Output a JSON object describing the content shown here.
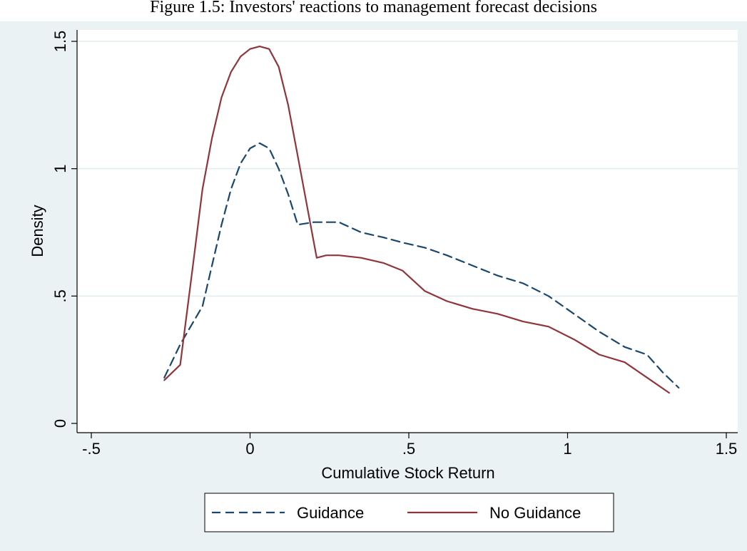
{
  "figure": {
    "caption": "Figure 1.5: Investors' reactions to management forecast decisions"
  },
  "chart_data": {
    "type": "line",
    "title": "",
    "xlabel": "Cumulative Stock Return",
    "ylabel": "Density",
    "xlim": [
      -0.5,
      1.5
    ],
    "ylim": [
      0,
      1.5
    ],
    "xticks": [
      -0.5,
      0,
      0.5,
      1,
      1.5
    ],
    "xtick_labels": [
      "-.5",
      "0",
      ".5",
      "1",
      "1.5"
    ],
    "yticks": [
      0,
      0.5,
      1,
      1.5
    ],
    "ytick_labels": [
      "0",
      ".5",
      "1",
      "1.5"
    ],
    "grid": true,
    "legend_position": "bottom",
    "colors": {
      "background": "#eaf2f3",
      "plot_area": "#ffffff",
      "grid": "#e1ecee",
      "guidance": "#1a476f",
      "no_guidance": "#90353b"
    },
    "series": [
      {
        "name": "Guidance",
        "style": "dashed",
        "x": [
          -0.27,
          -0.22,
          -0.15,
          -0.12,
          -0.09,
          -0.06,
          -0.03,
          0,
          0.03,
          0.06,
          0.09,
          0.12,
          0.15,
          0.2,
          0.28,
          0.35,
          0.42,
          0.48,
          0.55,
          0.62,
          0.7,
          0.78,
          0.86,
          0.94,
          1.02,
          1.1,
          1.18,
          1.25,
          1.3,
          1.35
        ],
        "y": [
          0.18,
          0.31,
          0.46,
          0.62,
          0.78,
          0.92,
          1.02,
          1.08,
          1.1,
          1.08,
          1.0,
          0.9,
          0.78,
          0.79,
          0.79,
          0.75,
          0.73,
          0.71,
          0.69,
          0.66,
          0.62,
          0.58,
          0.55,
          0.5,
          0.43,
          0.36,
          0.3,
          0.27,
          0.2,
          0.14
        ]
      },
      {
        "name": "No Guidance",
        "style": "solid",
        "x": [
          -0.27,
          -0.22,
          -0.18,
          -0.15,
          -0.12,
          -0.09,
          -0.06,
          -0.03,
          0,
          0.03,
          0.06,
          0.09,
          0.12,
          0.15,
          0.18,
          0.21,
          0.24,
          0.28,
          0.35,
          0.42,
          0.48,
          0.55,
          0.62,
          0.7,
          0.78,
          0.86,
          0.94,
          1.02,
          1.1,
          1.18,
          1.25,
          1.32
        ],
        "y": [
          0.17,
          0.23,
          0.62,
          0.92,
          1.12,
          1.28,
          1.38,
          1.44,
          1.47,
          1.48,
          1.47,
          1.4,
          1.25,
          1.05,
          0.85,
          0.65,
          0.66,
          0.66,
          0.65,
          0.63,
          0.6,
          0.52,
          0.48,
          0.45,
          0.43,
          0.4,
          0.38,
          0.33,
          0.27,
          0.24,
          0.18,
          0.12
        ]
      }
    ]
  }
}
